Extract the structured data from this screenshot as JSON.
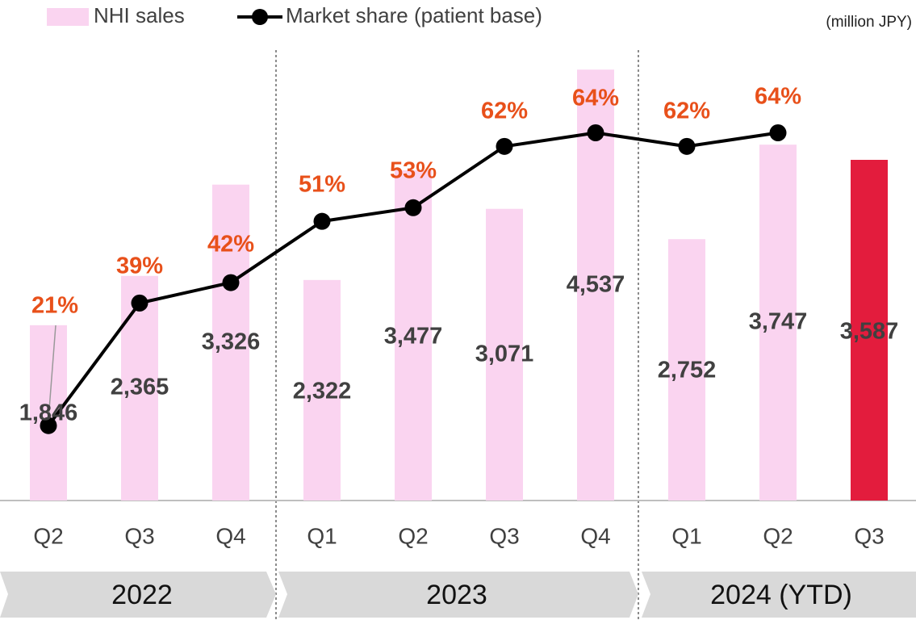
{
  "chart_data": {
    "type": "bar",
    "unit": "(million JPY)",
    "categories": [
      "Q2",
      "Q3",
      "Q4",
      "Q1",
      "Q2",
      "Q3",
      "Q4",
      "Q1",
      "Q2",
      "Q3"
    ],
    "groups": [
      "2022",
      "2023",
      "2024 (YTD)"
    ],
    "ylim": [
      0,
      5270
    ],
    "y2lim": [
      10,
      83.5
    ],
    "series": [
      {
        "name": "NHI sales",
        "type": "bar",
        "color": "#fad4f0",
        "colors": [
          "#fad4f0",
          "#fad4f0",
          "#fad4f0",
          "#fad4f0",
          "#fad4f0",
          "#fad4f0",
          "#fad4f0",
          "#fad4f0",
          "#fad4f0",
          "#e31c3d"
        ],
        "values": [
          1846,
          2365,
          3326,
          2322,
          3477,
          3071,
          4537,
          2752,
          3747,
          3587
        ],
        "value_labels": [
          "1,846",
          "2,365",
          "3,326",
          "2,322",
          "3,477",
          "3,071",
          "4,537",
          "2,752",
          "3,747",
          "3,587"
        ]
      },
      {
        "name": "Market share (patient base)",
        "type": "line",
        "axis": "y2",
        "color": "#000000",
        "values": [
          21,
          39,
          42,
          51,
          53,
          62,
          64,
          62,
          64,
          null
        ],
        "value_labels": [
          "21%",
          "39%",
          "42%",
          "51%",
          "53%",
          "62%",
          "64%",
          "62%",
          "64%",
          null
        ]
      }
    ]
  }
}
